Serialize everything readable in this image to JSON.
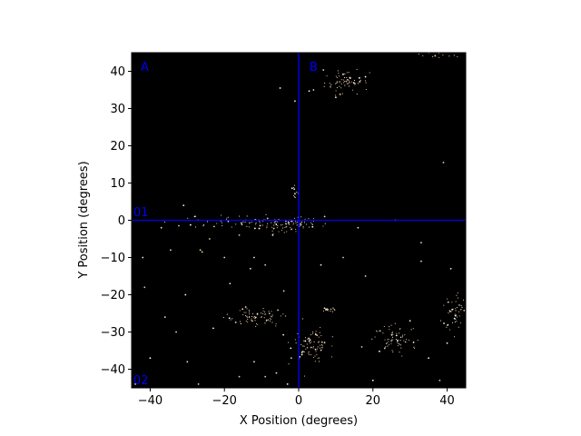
{
  "chart_data": {
    "type": "scatter",
    "title": "",
    "xlabel": "X Position (degrees)",
    "ylabel": "Y Position (degrees)",
    "xlim": [
      -45,
      45
    ],
    "ylim": [
      -45,
      45
    ],
    "xticks": [
      -40,
      -20,
      0,
      20,
      40
    ],
    "yticks": [
      40,
      30,
      20,
      10,
      0,
      -10,
      -20,
      -30,
      -40
    ],
    "background_color": "#000000",
    "grid": false,
    "reference_lines": {
      "color": "#0000ff",
      "vertical_x": 0,
      "horizontal_y": 0
    },
    "region_labels": [
      "A",
      "B",
      "01",
      "02"
    ],
    "point_colors": [
      "#ffffff",
      "#ffe4c4",
      "#f5deb3",
      "#ffd8a8",
      "#fff0d0",
      "#e8c8a0"
    ],
    "clusters": [
      {
        "center": [
          -5,
          -1
        ],
        "spread": [
          6,
          1.0
        ],
        "count": 110
      },
      {
        "center": [
          13,
          37
        ],
        "spread": [
          3,
          1.5
        ],
        "count": 70
      },
      {
        "center": [
          39,
          45
        ],
        "spread": [
          3,
          0.5
        ],
        "count": 30
      },
      {
        "center": [
          -12,
          -26
        ],
        "spread": [
          4,
          1.2
        ],
        "count": 80
      },
      {
        "center": [
          3,
          -33
        ],
        "spread": [
          2.5,
          2.2
        ],
        "count": 80
      },
      {
        "center": [
          26,
          -32
        ],
        "spread": [
          3,
          2
        ],
        "count": 70
      },
      {
        "center": [
          42,
          -24
        ],
        "spread": [
          1.5,
          2.5
        ],
        "count": 45
      },
      {
        "center": [
          8,
          -24
        ],
        "spread": [
          1.2,
          0.4
        ],
        "count": 20
      },
      {
        "center": [
          -1,
          7
        ],
        "spread": [
          0.4,
          1
        ],
        "count": 12
      },
      {
        "center": [
          -25,
          0
        ],
        "spread": [
          6,
          1
        ],
        "count": 25
      }
    ],
    "isolated_points": [
      [
        -41.5,
        -18
      ],
      [
        -34.5,
        -8
      ],
      [
        -31,
        4
      ],
      [
        -30.5,
        -20
      ],
      [
        -26.5,
        -8
      ],
      [
        -26,
        -8.5
      ],
      [
        -18.5,
        -17
      ],
      [
        -37,
        -2
      ],
      [
        -20,
        -10
      ],
      [
        -13,
        -13
      ],
      [
        -9,
        -12
      ],
      [
        39,
        15.5
      ],
      [
        -5,
        35.5
      ],
      [
        -1,
        32
      ],
      [
        -7,
        -4
      ],
      [
        -2,
        -37
      ],
      [
        -9,
        -42
      ],
      [
        -6,
        -41
      ],
      [
        -3,
        -44
      ],
      [
        16,
        -2
      ],
      [
        7,
        1
      ],
      [
        4,
        35
      ],
      [
        10,
        33
      ],
      [
        33,
        -11
      ],
      [
        41,
        -13
      ],
      [
        -42,
        -10
      ],
      [
        -28,
        1
      ],
      [
        -24,
        -5
      ],
      [
        -16,
        -4
      ],
      [
        -12,
        -10
      ],
      [
        -44,
        -44
      ],
      [
        -40,
        -37
      ],
      [
        -30,
        -38
      ],
      [
        -23,
        -29
      ],
      [
        -27,
        -44
      ],
      [
        -16,
        -42
      ],
      [
        -12,
        -38
      ],
      [
        35,
        -37
      ],
      [
        40,
        -33
      ],
      [
        33,
        -6
      ],
      [
        30,
        -27
      ],
      [
        17,
        -34
      ],
      [
        20,
        -43
      ],
      [
        38,
        -43
      ],
      [
        18,
        -15
      ],
      [
        26,
        0
      ],
      [
        -4,
        -19
      ],
      [
        12,
        -10
      ],
      [
        6,
        -12
      ],
      [
        -33,
        -30
      ],
      [
        -36,
        -26
      ]
    ]
  }
}
